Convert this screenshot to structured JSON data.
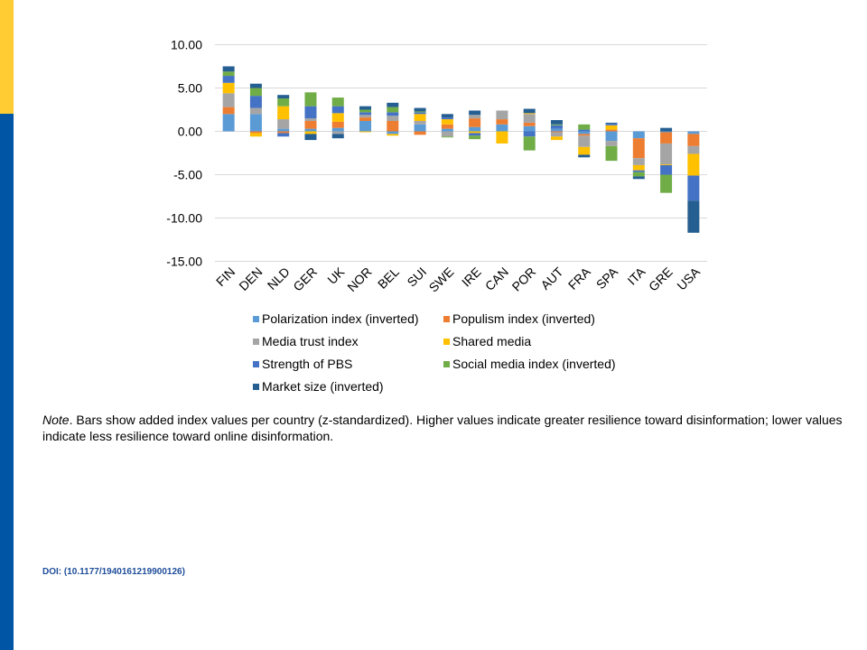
{
  "colors": {
    "top_accent": "#FFCC33",
    "side_accent": "#0055A5",
    "doi_text": "#1F4E9A"
  },
  "chart_data": {
    "type": "bar",
    "stacked": true,
    "title": "",
    "xlabel": "",
    "ylabel": "",
    "ylim": [
      -15,
      10
    ],
    "yticks": [
      10,
      5,
      0,
      -5,
      -10,
      -15
    ],
    "ytick_labels": [
      "10.00",
      "5.00",
      "0.00",
      "-5.00",
      "-10.00",
      "-15.00"
    ],
    "categories": [
      "FIN",
      "DEN",
      "NLD",
      "GER",
      "UK",
      "NOR",
      "BEL",
      "SUI",
      "SWE",
      "IRE",
      "CAN",
      "POR",
      "AUT",
      "FRA",
      "SPA",
      "ITA",
      "GRE",
      "USA"
    ],
    "series": [
      {
        "name": "Polarization index (inverted)",
        "color": "#5B9BD5",
        "values": [
          2.0,
          2.0,
          0.3,
          0.3,
          0.4,
          1.2,
          -0.3,
          0.8,
          0.3,
          0.5,
          0.8,
          0.6,
          0.3,
          -0.3,
          -1.1,
          -0.8,
          -0.1,
          -0.3
        ]
      },
      {
        "name": "Populism index (inverted)",
        "color": "#ED7D31",
        "values": [
          0.8,
          -0.2,
          -0.2,
          0.9,
          0.7,
          0.4,
          1.2,
          -0.4,
          0.5,
          1.0,
          0.6,
          0.4,
          -0.1,
          -0.2,
          0.2,
          -2.3,
          -1.3,
          -1.4
        ]
      },
      {
        "name": "Media trust index",
        "color": "#A5A5A5",
        "values": [
          1.6,
          0.7,
          1.1,
          0.3,
          -0.3,
          0.3,
          0.6,
          0.4,
          -0.6,
          0.4,
          1.0,
          1.0,
          -0.5,
          -1.3,
          -0.6,
          -0.8,
          -2.4,
          -0.9
        ]
      },
      {
        "name": "Shared media",
        "color": "#FFC000",
        "values": [
          1.2,
          -0.4,
          1.5,
          -0.3,
          1.0,
          -0.1,
          -0.2,
          0.8,
          0.6,
          -0.2,
          -1.4,
          0.1,
          -0.4,
          -0.9,
          0.5,
          -0.6,
          -0.1,
          -2.5
        ]
      },
      {
        "name": "Strength of PBS",
        "color": "#4472C4",
        "values": [
          0.8,
          1.4,
          -0.4,
          1.4,
          0.8,
          0.3,
          0.4,
          0.2,
          0.2,
          -0.3,
          0.0,
          -0.6,
          0.4,
          0.2,
          0.2,
          -0.2,
          -1.1,
          -2.9
        ]
      },
      {
        "name": "Social media index (inverted)",
        "color": "#70AD47",
        "values": [
          0.5,
          0.9,
          0.9,
          1.6,
          1.0,
          0.3,
          0.6,
          0.1,
          -0.1,
          -0.4,
          0.0,
          -1.6,
          0.1,
          0.6,
          -1.7,
          -0.5,
          -2.1,
          0.0
        ]
      },
      {
        "name": "Market size (inverted)",
        "color": "#255E91",
        "values": [
          0.6,
          0.5,
          0.4,
          -0.7,
          -0.5,
          0.4,
          0.5,
          0.4,
          0.4,
          0.5,
          0.0,
          0.5,
          0.5,
          -0.3,
          0.1,
          -0.3,
          0.4,
          -3.7
        ]
      }
    ],
    "legend_position": "bottom"
  },
  "note": {
    "label": "Note",
    "text": ". Bars show added index values per country (z-standardized). Higher values indicate greater resilience toward disinformation; lower values indicate less resilience toward online disinformation."
  },
  "doi": "DOI: (10.1177/1940161219900126)"
}
